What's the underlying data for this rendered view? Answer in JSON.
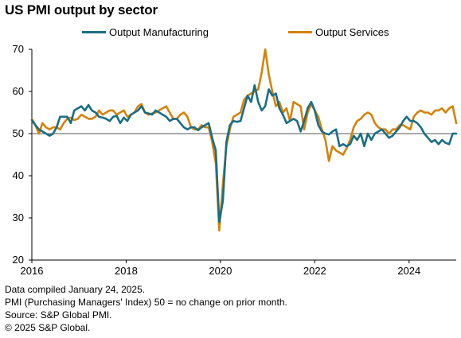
{
  "title": "US PMI output by sector",
  "legend": [
    {
      "name": "Output Manufacturing",
      "color": "#1a6e84"
    },
    {
      "name": "Output Services",
      "color": "#d4820c"
    }
  ],
  "footer": [
    "Data compiled January 24, 2025.",
    "PMI (Purchasing Managers' Index) 50 =  no change on prior month.",
    "Source: S&P Global PMI.",
    "© 2025 S&P Global."
  ],
  "chart_data": {
    "type": "line",
    "ylim": [
      20,
      70
    ],
    "xlim": [
      "2016-01",
      "2025-01"
    ],
    "y_ticks": [
      20,
      30,
      40,
      50,
      60,
      70
    ],
    "x_ticks": [
      "2016",
      "2018",
      "2020",
      "2022",
      "2024"
    ],
    "reference_line": 50,
    "grid": false,
    "legend_position": "top",
    "start_month": "2016-01",
    "series": [
      {
        "name": "Output Manufacturing",
        "color": "#1a6e84",
        "values": [
          53.2,
          52.0,
          51.0,
          50.5,
          50.0,
          49.5,
          50.0,
          51.5,
          54.0,
          54.0,
          54.0,
          52.5,
          55.5,
          56.0,
          56.5,
          55.5,
          56.8,
          55.5,
          55.0,
          54.0,
          53.8,
          53.5,
          53.0,
          54.0,
          54.2,
          52.5,
          53.8,
          53.0,
          54.5,
          55.0,
          55.5,
          56.5,
          55.0,
          54.8,
          54.5,
          55.5,
          55.0,
          54.5,
          54.0,
          53.0,
          53.5,
          53.5,
          52.5,
          51.5,
          51.0,
          51.5,
          51.5,
          50.8,
          51.5,
          52.0,
          52.5,
          49.0,
          46.0,
          29.0,
          34.0,
          48.0,
          52.0,
          53.0,
          52.8,
          53.0,
          56.0,
          59.0,
          57.5,
          61.5,
          57.5,
          55.5,
          56.5,
          60.5,
          59.0,
          59.5,
          56.0,
          54.5,
          52.5,
          53.0,
          53.5,
          53.0,
          50.5,
          53.0,
          56.0,
          57.5,
          55.5,
          52.0,
          50.5,
          50.0,
          49.8,
          50.5,
          51.0,
          47.0,
          47.5,
          47.0,
          47.5,
          49.5,
          48.5,
          50.0,
          47.0,
          50.0,
          48.5,
          50.0,
          50.5,
          51.0,
          50.0,
          49.0,
          49.5,
          50.5,
          51.5,
          53.0,
          54.0,
          53.0,
          53.0,
          52.5,
          51.5,
          50.0,
          49.0,
          48.0,
          48.5,
          47.5,
          48.5,
          47.8,
          47.5,
          50.0,
          50.0
        ]
      },
      {
        "name": "Output Services",
        "color": "#d4820c",
        "values": [
          53.5,
          52.0,
          50.0,
          52.5,
          51.5,
          51.0,
          51.5,
          51.5,
          51.0,
          52.5,
          53.5,
          53.8,
          53.2,
          53.5,
          54.5,
          54.0,
          53.5,
          53.5,
          54.0,
          55.5,
          54.5,
          55.0,
          55.5,
          55.5,
          54.5,
          55.0,
          55.5,
          54.0,
          54.5,
          55.0,
          56.5,
          57.0,
          55.0,
          54.5,
          54.8,
          55.0,
          55.5,
          56.0,
          56.5,
          55.0,
          53.5,
          53.5,
          54.5,
          55.0,
          54.0,
          51.5,
          51.0,
          51.0,
          52.0,
          51.5,
          51.5,
          48.0,
          43.0,
          27.0,
          38.0,
          47.0,
          51.0,
          54.0,
          54.5,
          55.0,
          58.0,
          59.0,
          59.5,
          60.0,
          60.5,
          64.5,
          70.0,
          64.0,
          60.0,
          56.5,
          57.5,
          55.0,
          56.0,
          53.0,
          57.5,
          57.0,
          56.5,
          51.0,
          55.0,
          57.0,
          55.5,
          54.0,
          51.0,
          48.5,
          43.5,
          47.0,
          46.0,
          45.5,
          45.0,
          46.5,
          48.5,
          51.5,
          53.0,
          53.5,
          54.5,
          55.0,
          54.5,
          52.5,
          51.5,
          51.0,
          51.0,
          50.0,
          51.0,
          51.0,
          52.0,
          52.0,
          51.5,
          51.0,
          54.0,
          55.0,
          55.5,
          55.0,
          55.0,
          54.5,
          55.5,
          55.5,
          56.0,
          55.0,
          56.0,
          56.5,
          52.5
        ]
      }
    ]
  }
}
